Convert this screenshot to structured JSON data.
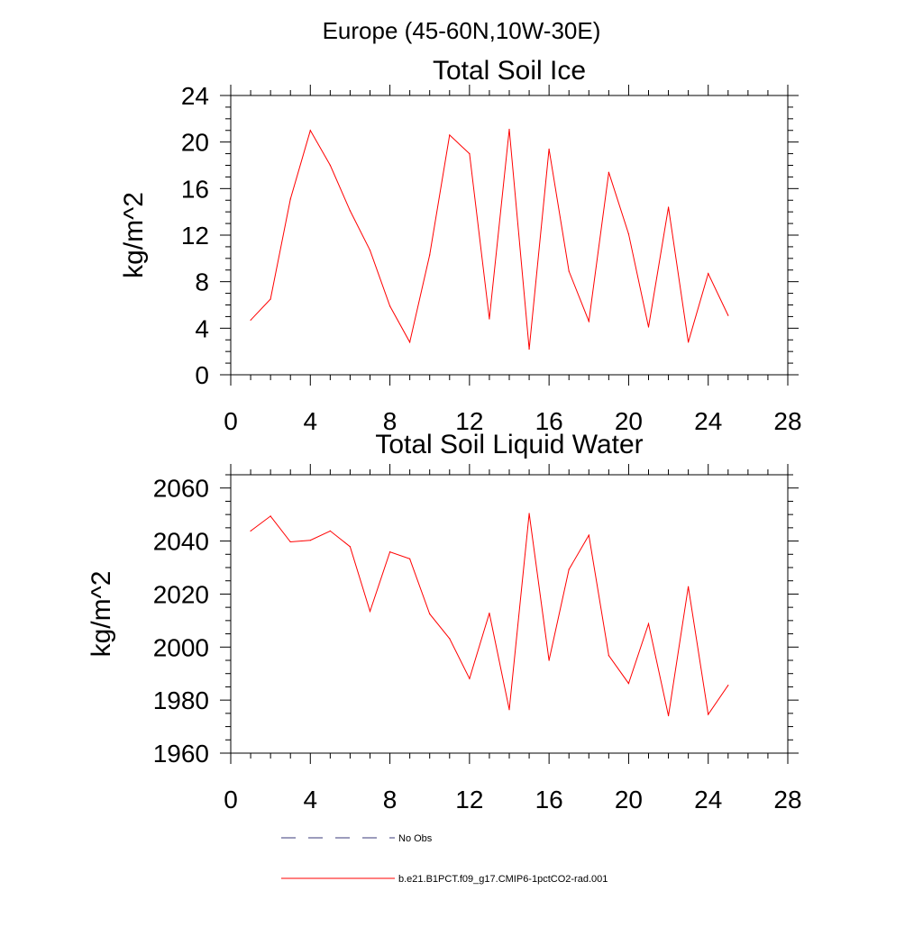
{
  "figure": {
    "title": "Europe (45-60N,10W-30E)"
  },
  "colors": {
    "model_line": "#ff0000",
    "obs_line": "#3a3a7a",
    "axis": "#000000"
  },
  "legend": {
    "items": [
      {
        "label": "No Obs",
        "style": "dashed",
        "color": "#3a3a7a"
      },
      {
        "label": "b.e21.B1PCT.f09_g17.CMIP6-1pctCO2-rad.001",
        "style": "solid",
        "color": "#ff0000"
      }
    ]
  },
  "chart_data": [
    {
      "type": "line",
      "title": "Total Soil Ice",
      "xlabel": "",
      "ylabel": "kg/m^2",
      "xlim": [
        0,
        28
      ],
      "ylim": [
        0,
        24
      ],
      "xticks": [
        0,
        4,
        8,
        12,
        16,
        20,
        24,
        28
      ],
      "yticks": [
        0,
        4,
        8,
        12,
        16,
        20,
        24
      ],
      "grid": false,
      "series": [
        {
          "name": "b.e21.B1PCT.f09_g17.CMIP6-1pctCO2-rad.001",
          "color": "#ff0000",
          "x": [
            1,
            2,
            3,
            4,
            5,
            6,
            7,
            8,
            9,
            10,
            11,
            12,
            13,
            14,
            15,
            16,
            17,
            18,
            19,
            20,
            21,
            22,
            23,
            24,
            25
          ],
          "y": [
            4.7,
            6.5,
            15.1,
            21.0,
            18.0,
            14.1,
            10.7,
            5.9,
            2.8,
            10.3,
            20.6,
            19.0,
            4.8,
            21.1,
            2.2,
            19.4,
            8.9,
            4.6,
            17.4,
            12.1,
            4.1,
            14.4,
            2.8,
            8.7,
            5.1
          ]
        }
      ]
    },
    {
      "type": "line",
      "title": "Total Soil Liquid Water",
      "xlabel": "",
      "ylabel": "kg/m^2",
      "xlim": [
        0,
        28
      ],
      "ylim": [
        1960,
        2065
      ],
      "xticks": [
        0,
        4,
        8,
        12,
        16,
        20,
        24,
        28
      ],
      "yticks": [
        1960,
        1980,
        2000,
        2020,
        2040,
        2060
      ],
      "grid": false,
      "series": [
        {
          "name": "b.e21.B1PCT.f09_g17.CMIP6-1pctCO2-rad.001",
          "color": "#ff0000",
          "x": [
            1,
            2,
            3,
            4,
            5,
            6,
            7,
            8,
            9,
            10,
            11,
            12,
            13,
            14,
            15,
            16,
            17,
            18,
            19,
            20,
            21,
            22,
            23,
            24,
            25
          ],
          "y": [
            2043.8,
            2049.4,
            2039.7,
            2040.3,
            2043.8,
            2037.9,
            2013.5,
            2035.9,
            2033.3,
            2012.5,
            2003.2,
            1988.1,
            2012.8,
            1976.4,
            2050.4,
            1995.0,
            2029.3,
            2042.2,
            1996.8,
            1986.3,
            2008.8,
            1974.1,
            2022.8,
            1974.6,
            1985.6
          ]
        }
      ]
    }
  ]
}
